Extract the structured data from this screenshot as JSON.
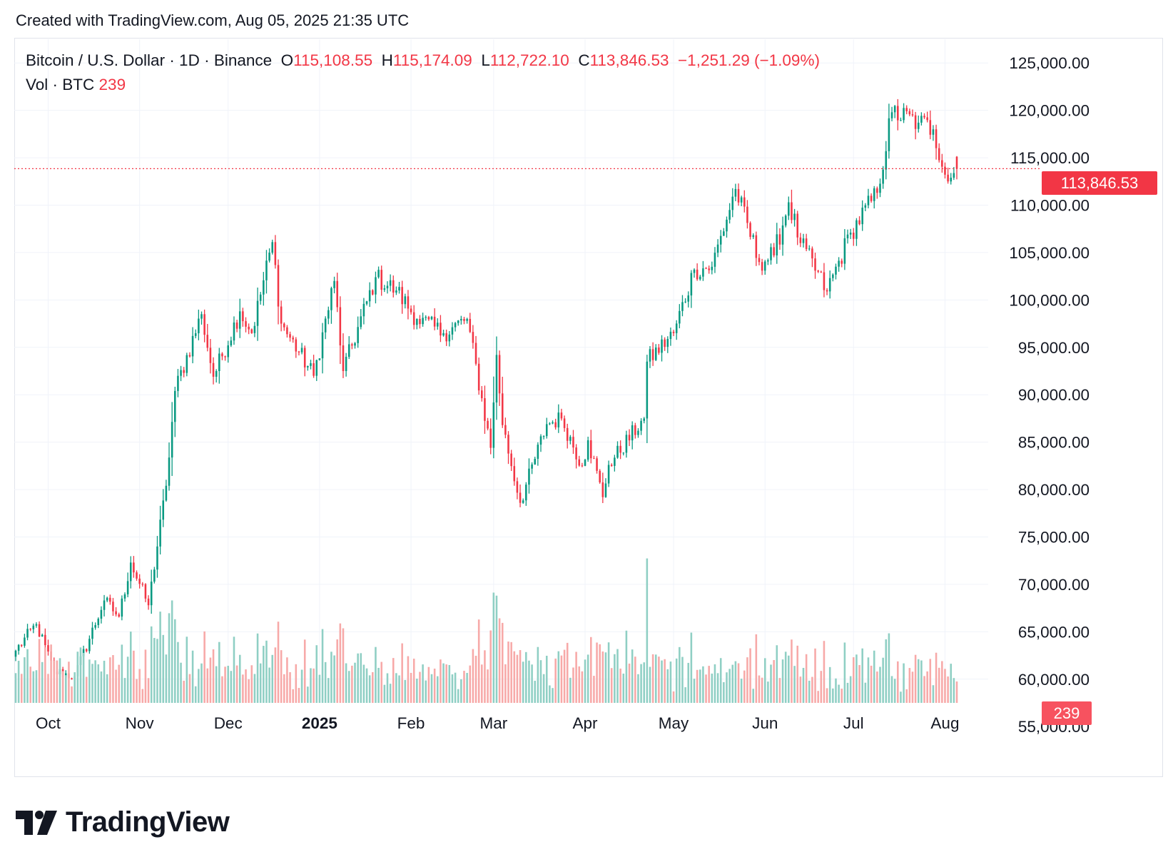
{
  "header": {
    "created": "Created with TradingView.com, Aug 05, 2025 21:35 UTC"
  },
  "legend": {
    "symbol": "Bitcoin / U.S. Dollar · 1D · Binance",
    "o_label": "O",
    "o_value": "115,108.55",
    "h_label": "H",
    "h_value": "115,174.09",
    "l_label": "L",
    "l_value": "112,722.10",
    "c_label": "C",
    "c_value": "113,846.53",
    "change": "−1,251.29 (−1.09%)",
    "vol_label": "Vol · BTC",
    "vol_value": "239"
  },
  "price_tag": "113,846.53",
  "volume_tag": "239",
  "brand": {
    "name": "TradingView"
  },
  "colors": {
    "up": "#089981",
    "down": "#f23645",
    "vol_up": "#8fcfc4",
    "vol_down": "#f7a9a8",
    "grid": "#f0f3fa"
  },
  "chart_data": {
    "type": "candlestick",
    "title": "Bitcoin / U.S. Dollar · 1D · Binance",
    "ylim": [
      57500,
      127500
    ],
    "y_ticks": [
      "125,000.00",
      "120,000.00",
      "115,000.00",
      "110,000.00",
      "105,000.00",
      "100,000.00",
      "95,000.00",
      "90,000.00",
      "85,000.00",
      "80,000.00",
      "75,000.00",
      "70,000.00",
      "65,000.00",
      "60,000.00",
      "55,000.00"
    ],
    "y_tick_values": [
      125000,
      120000,
      115000,
      110000,
      105000,
      100000,
      95000,
      90000,
      85000,
      80000,
      75000,
      70000,
      65000,
      60000,
      55000
    ],
    "x_ticks": [
      "Oct",
      "Nov",
      "Dec",
      "2025",
      "Feb",
      "Mar",
      "Apr",
      "May",
      "Jun",
      "Jul",
      "Aug"
    ],
    "x_tick_dates": [
      "2024-10-01",
      "2024-11-01",
      "2024-12-01",
      "2025-01-01",
      "2025-02-01",
      "2025-03-01",
      "2025-04-01",
      "2025-05-01",
      "2025-06-01",
      "2025-07-01",
      "2025-08-01"
    ],
    "date_range": [
      "2024-09-20",
      "2025-08-05"
    ],
    "close_anchors": [
      [
        "2024-09-20",
        63000
      ],
      [
        "2024-09-27",
        65800
      ],
      [
        "2024-10-03",
        60800
      ],
      [
        "2024-10-10",
        60300
      ],
      [
        "2024-10-20",
        68300
      ],
      [
        "2024-10-25",
        66600
      ],
      [
        "2024-10-29",
        72300
      ],
      [
        "2024-11-04",
        67800
      ],
      [
        "2024-11-10",
        80400
      ],
      [
        "2024-11-13",
        90400
      ],
      [
        "2024-11-22",
        98500
      ],
      [
        "2024-11-26",
        91900
      ],
      [
        "2024-12-05",
        98800
      ],
      [
        "2024-12-09",
        96500
      ],
      [
        "2024-12-16",
        106100
      ],
      [
        "2024-12-19",
        97500
      ],
      [
        "2024-12-30",
        92000
      ],
      [
        "2025-01-06",
        102000
      ],
      [
        "2025-01-09",
        92500
      ],
      [
        "2025-01-20",
        102400
      ],
      [
        "2025-01-27",
        101000
      ],
      [
        "2025-02-03",
        98000
      ],
      [
        "2025-02-12",
        96500
      ],
      [
        "2025-02-20",
        98000
      ],
      [
        "2025-02-28",
        84400
      ],
      [
        "2025-03-02",
        94200
      ],
      [
        "2025-03-04",
        86800
      ],
      [
        "2025-03-10",
        78600
      ],
      [
        "2025-03-19",
        86900
      ],
      [
        "2025-03-24",
        87500
      ],
      [
        "2025-03-31",
        82500
      ],
      [
        "2025-04-02",
        85200
      ],
      [
        "2025-04-07",
        79200
      ],
      [
        "2025-04-09",
        82600
      ],
      [
        "2025-04-21",
        87500
      ],
      [
        "2025-04-22",
        93500
      ],
      [
        "2025-05-01",
        96500
      ],
      [
        "2025-05-08",
        103200
      ],
      [
        "2025-05-14",
        103500
      ],
      [
        "2025-05-22",
        111700
      ],
      [
        "2025-05-30",
        104000
      ],
      [
        "2025-06-04",
        104700
      ],
      [
        "2025-06-09",
        110300
      ],
      [
        "2025-06-13",
        106000
      ],
      [
        "2025-06-22",
        100900
      ],
      [
        "2025-06-30",
        107100
      ],
      [
        "2025-07-09",
        111300
      ],
      [
        "2025-07-14",
        119800
      ],
      [
        "2025-07-23",
        118700
      ],
      [
        "2025-07-28",
        118000
      ],
      [
        "2025-08-02",
        112500
      ],
      [
        "2025-08-05",
        113846
      ]
    ],
    "last": {
      "open": 115108.55,
      "high": 115174.09,
      "low": 112722.1,
      "close": 113846.53,
      "volume": 239
    }
  }
}
